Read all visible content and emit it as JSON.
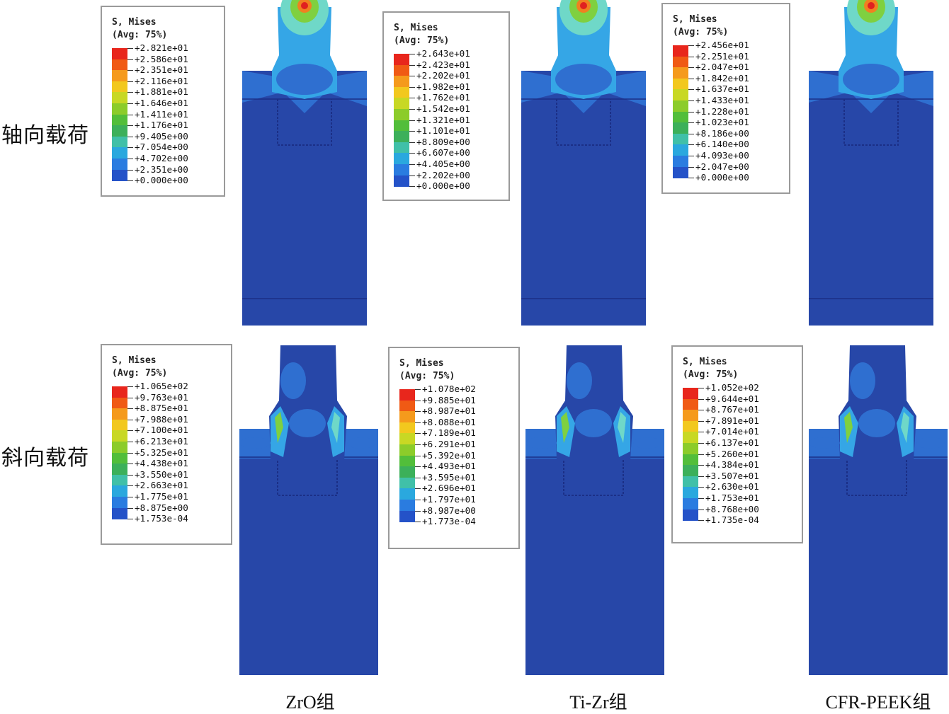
{
  "row_labels": [
    "轴向载荷",
    "斜向载荷"
  ],
  "column_labels": [
    "ZrO组",
    "Ti-Zr组",
    "CFR-PEEK组"
  ],
  "legend_title": [
    "S, Mises",
    "(Avg: 75%)"
  ],
  "legends": [
    {
      "values": [
        "+2.821e+01",
        "+2.586e+01",
        "+2.351e+01",
        "+2.116e+01",
        "+1.881e+01",
        "+1.646e+01",
        "+1.411e+01",
        "+1.176e+01",
        "+9.405e+00",
        "+7.054e+00",
        "+4.702e+00",
        "+2.351e+00",
        "+0.000e+00"
      ]
    },
    {
      "values": [
        "+2.643e+01",
        "+2.423e+01",
        "+2.202e+01",
        "+1.982e+01",
        "+1.762e+01",
        "+1.542e+01",
        "+1.321e+01",
        "+1.101e+01",
        "+8.809e+00",
        "+6.607e+00",
        "+4.405e+00",
        "+2.202e+00",
        "+0.000e+00"
      ]
    },
    {
      "values": [
        "+2.456e+01",
        "+2.251e+01",
        "+2.047e+01",
        "+1.842e+01",
        "+1.637e+01",
        "+1.433e+01",
        "+1.228e+01",
        "+1.023e+01",
        "+8.186e+00",
        "+6.140e+00",
        "+4.093e+00",
        "+2.047e+00",
        "+0.000e+00"
      ]
    },
    {
      "values": [
        "+1.065e+02",
        "+9.763e+01",
        "+8.875e+01",
        "+7.988e+01",
        "+7.100e+01",
        "+6.213e+01",
        "+5.325e+01",
        "+4.438e+01",
        "+3.550e+01",
        "+2.663e+01",
        "+1.775e+01",
        "+8.875e+00",
        "+1.753e-04"
      ]
    },
    {
      "values": [
        "+1.078e+02",
        "+9.885e+01",
        "+8.987e+01",
        "+8.088e+01",
        "+7.189e+01",
        "+6.291e+01",
        "+5.392e+01",
        "+4.493e+01",
        "+3.595e+01",
        "+2.696e+01",
        "+1.797e+01",
        "+8.987e+00",
        "+1.773e-04"
      ]
    },
    {
      "values": [
        "+1.052e+02",
        "+9.644e+01",
        "+8.767e+01",
        "+7.891e+01",
        "+7.014e+01",
        "+6.137e+01",
        "+5.260e+01",
        "+4.384e+01",
        "+3.507e+01",
        "+2.630e+01",
        "+1.753e+01",
        "+8.768e+00",
        "+1.735e-04"
      ]
    }
  ],
  "colorbar": [
    "#e8261c",
    "#f05a14",
    "#f59a1c",
    "#f2c81e",
    "#c8d824",
    "#8ccc2a",
    "#52be3a",
    "#3cb05a",
    "#40c0a8",
    "#2aa8de",
    "#2a7ce0",
    "#2452c8",
    "#1e3caa"
  ],
  "mesh_colors": {
    "base": "#2747a8",
    "light": "#2f6fd0",
    "cyan": "#35a6e6",
    "mint": "#6fd8c8",
    "green": "#7fd040",
    "yellow": "#f0d020",
    "orange": "#f08020",
    "red": "#e02020",
    "edge": "#1b2f86"
  }
}
